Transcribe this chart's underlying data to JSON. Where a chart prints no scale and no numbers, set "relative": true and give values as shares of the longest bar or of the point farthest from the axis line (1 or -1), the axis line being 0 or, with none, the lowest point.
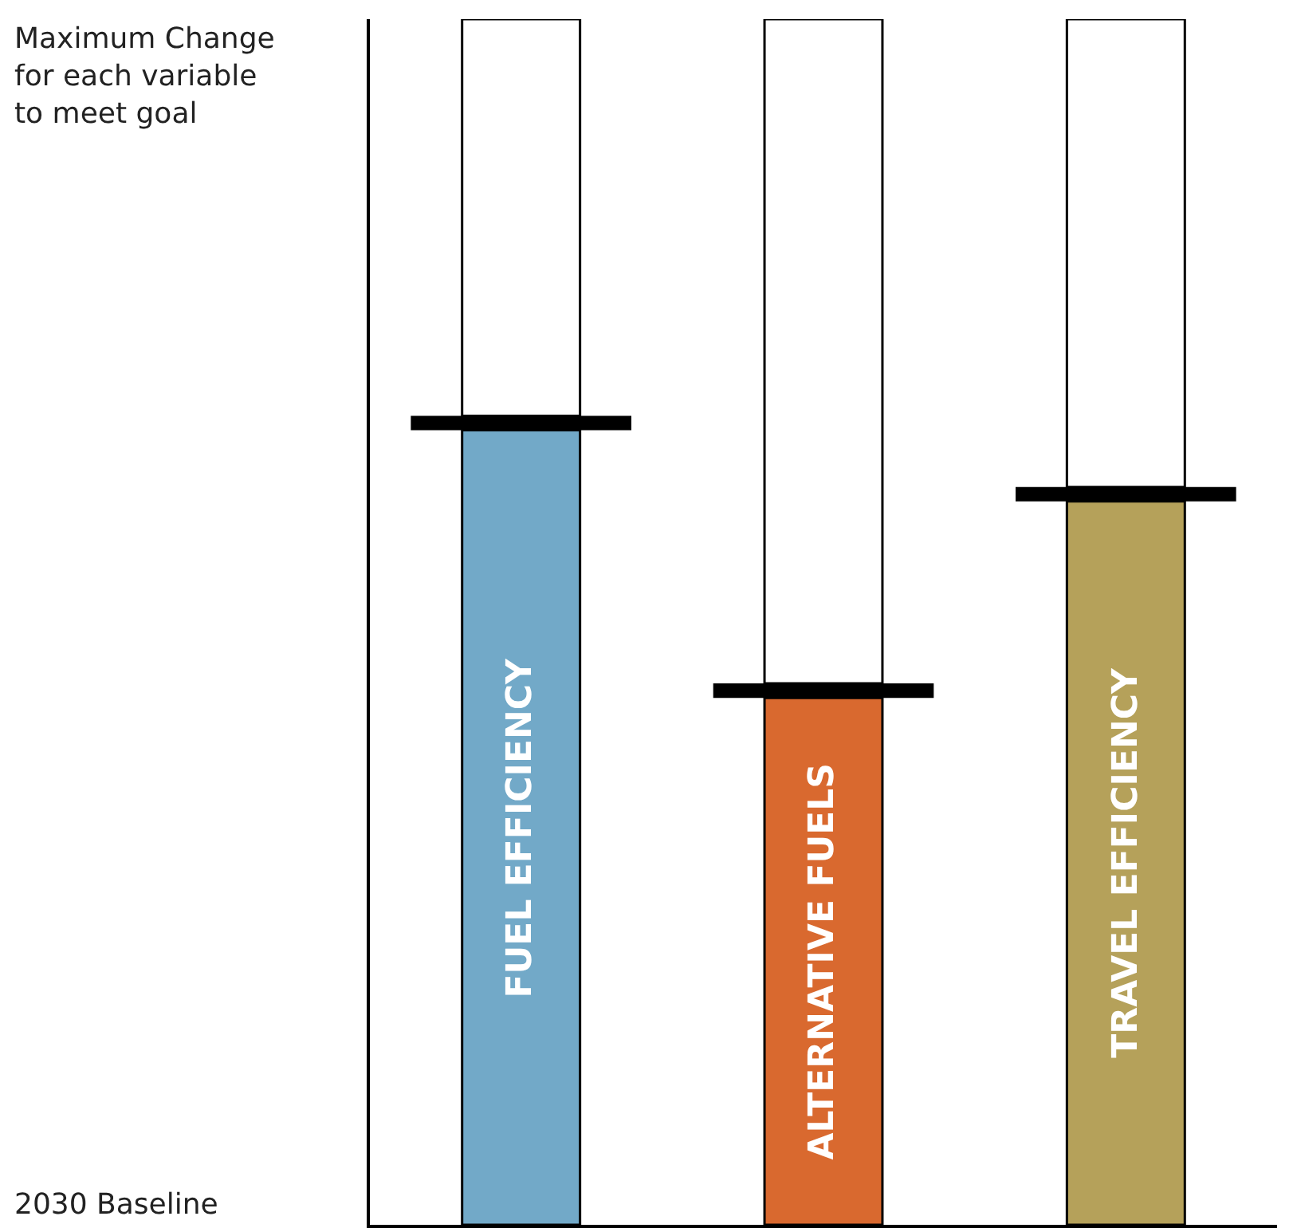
{
  "chart_data": {
    "type": "bar",
    "relative": true,
    "stacked": true,
    "categories": [
      "FUEL EFFICIENCY",
      "ALTERNATIVE FUELS",
      "TRAVEL EFFICIENCY"
    ],
    "series": [
      {
        "colors": [
          "#72a9c8",
          "#d9692f",
          "#b5a15a"
        ],
        "values": [
          0.659,
          0.437,
          0.6
        ]
      },
      {
        "color": "#000000",
        "values": [
          0.012,
          0.012,
          0.012
        ]
      },
      {
        "color": "#ffffff",
        "values": [
          0.329,
          0.551,
          0.388
        ]
      }
    ],
    "annotations": [
      "Maximum Change\nfor each variable\nto meet goal",
      "2030 Baseline"
    ]
  }
}
